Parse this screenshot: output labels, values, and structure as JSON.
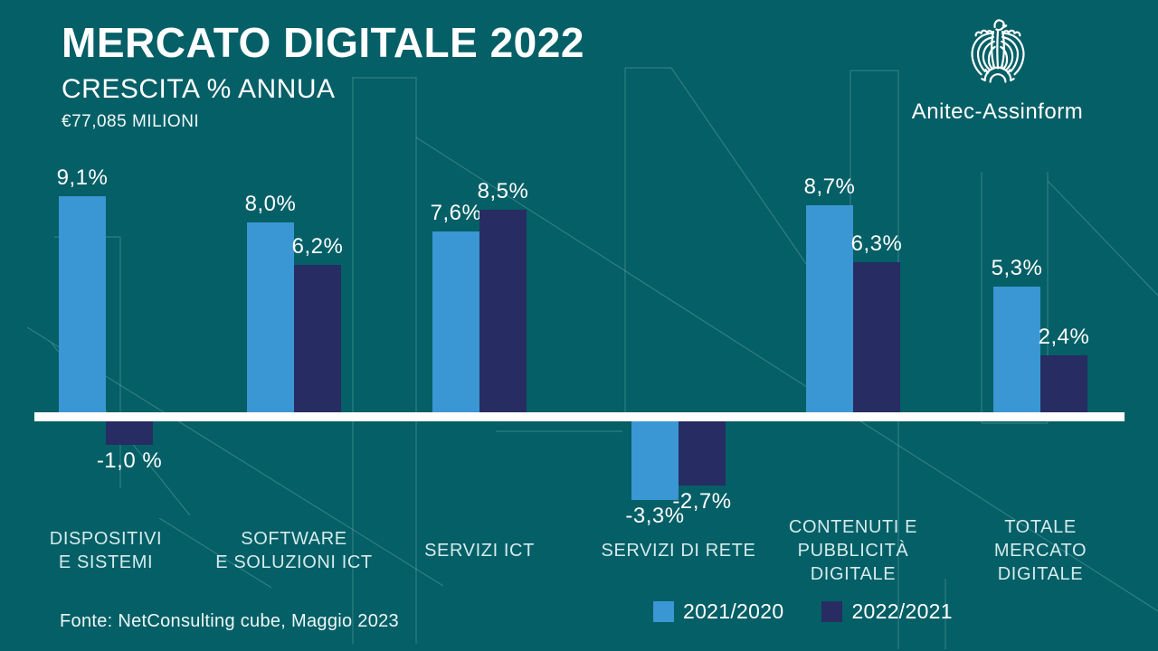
{
  "header": {
    "title": "MERCATO DIGITALE 2022",
    "subtitle": "CRESCITA % ANNUA",
    "total_label": "€77,085 MILIONI"
  },
  "logo": {
    "icon": "confindustria-eagle-icon",
    "brand": "Anitec-Assinform"
  },
  "footer": {
    "source": "Fonte: NetConsulting cube, Maggio 2023"
  },
  "legend": [
    {
      "label": "2021/2020",
      "color": "#3a97d3"
    },
    {
      "label": "2022/2021",
      "color": "#272c62"
    }
  ],
  "colors": {
    "background": "#045f66",
    "axis": "#ffffff",
    "series_2021_2020": "#3a97d3",
    "series_2022_2021": "#272c62",
    "category_text": "#d5ebec",
    "decorative_lines": "#a9d2d3"
  },
  "chart_data": {
    "type": "bar",
    "title": "MERCATO DIGITALE 2022",
    "subtitle": "CRESCITA % ANNUA",
    "total_market_value": "€77,085 MILIONI",
    "unit": "%",
    "source": "Fonte: NetConsulting cube, Maggio 2023",
    "legend_position": "bottom",
    "grid": false,
    "zero_baseline": true,
    "ylim": [
      -4,
      10
    ],
    "categories": [
      [
        "DISPOSITIVI",
        "E SISTEMI"
      ],
      [
        "SOFTWARE",
        "E SOLUZIONI ICT"
      ],
      [
        "SERVIZI ICT"
      ],
      [
        "SERVIZI DI RETE"
      ],
      [
        "CONTENUTI E",
        "PUBBLICITÀ",
        "DIGITALE"
      ],
      [
        "TOTALE",
        "MERCATO",
        "DIGITALE"
      ]
    ],
    "series": [
      {
        "name": "2021/2020",
        "color": "#3a97d3",
        "values": [
          9.1,
          8.0,
          7.6,
          -3.3,
          8.7,
          5.3
        ],
        "labels": [
          "9,1%",
          "8,0%",
          "7,6%",
          "-3,3%",
          "8,7%",
          "5,3%"
        ]
      },
      {
        "name": "2022/2021",
        "color": "#272c62",
        "values": [
          -1.0,
          6.2,
          8.5,
          -2.7,
          6.3,
          2.4
        ],
        "labels": [
          "-1,0 %",
          "6,2%",
          "8,5%",
          "-2,7%",
          "6,3%",
          "2,4%"
        ]
      }
    ]
  }
}
